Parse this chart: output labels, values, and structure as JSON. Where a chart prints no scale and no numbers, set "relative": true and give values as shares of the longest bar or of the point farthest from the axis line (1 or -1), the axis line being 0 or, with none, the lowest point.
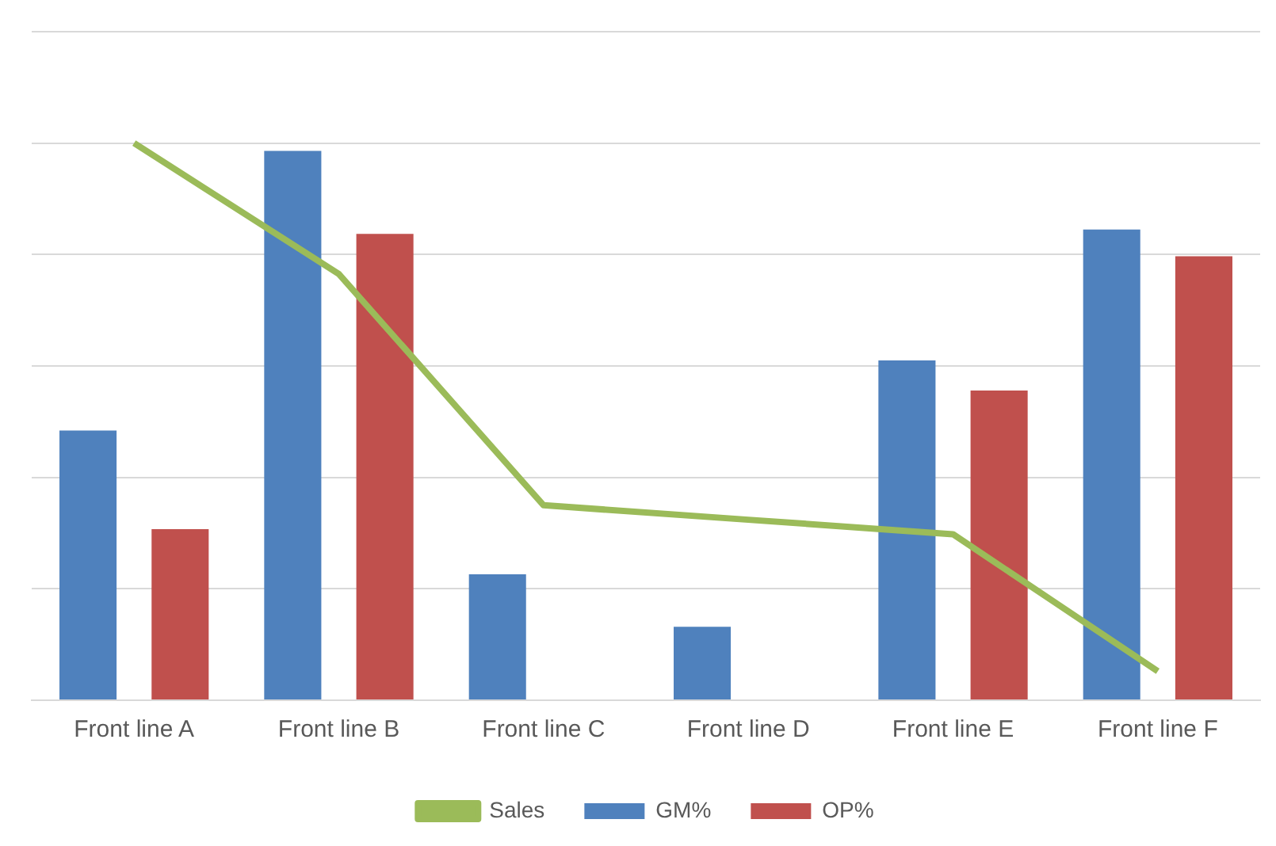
{
  "chart_data": {
    "type": "bar",
    "relative": true,
    "grid": "y",
    "legend": "bottom",
    "categories": [
      "Front line A",
      "Front line B",
      "Front line C",
      "Front line D",
      "Front line E",
      "Front line F"
    ],
    "series": [
      {
        "name": "GM%",
        "color": "#4f81bd",
        "values": [
          0.484,
          0.986,
          0.226,
          0.132,
          0.61,
          0.845
        ]
      },
      {
        "name": "OP%",
        "color": "#c0504d",
        "values": [
          0.307,
          0.837,
          0,
          0,
          0.556,
          0.797
        ]
      },
      {
        "name": "Sales",
        "type": "line",
        "color": "#9bbb59",
        "marker": "none",
        "values": [
          1,
          0.765,
          0.35,
          0.324,
          0.298,
          0.052
        ]
      }
    ]
  }
}
